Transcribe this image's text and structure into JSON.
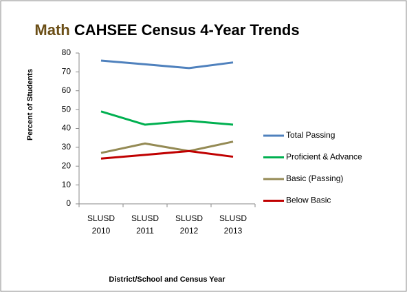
{
  "chart_data": {
    "type": "line",
    "title": [
      "Math",
      "CAHSEE Census 4-Year Trends"
    ],
    "title_colors": [
      "#6b4e16",
      "#000000"
    ],
    "x_label": "District/School and Census Year",
    "y_label": "Percent of Students",
    "categories": [
      "SLUSD 2010",
      "SLUSD 2011",
      "SLUSD 2012",
      "SLUSD 2013"
    ],
    "series": [
      {
        "name": "Total Passing",
        "color": "#4f81bd",
        "values": [
          76,
          74,
          72,
          75
        ]
      },
      {
        "name": "Proficient & Advance",
        "color": "#00b050",
        "values": [
          49,
          42,
          44,
          42
        ]
      },
      {
        "name": "Basic (Passing)",
        "color": "#948a54",
        "values": [
          27,
          32,
          28,
          33
        ]
      },
      {
        "name": "Below Basic",
        "color": "#c00000",
        "values": [
          24,
          26,
          28,
          25
        ]
      }
    ],
    "ylim": [
      0,
      80
    ],
    "yticks": [
      0,
      10,
      20,
      30,
      40,
      50,
      60,
      70,
      80
    ],
    "grid": false,
    "legend": "right"
  }
}
